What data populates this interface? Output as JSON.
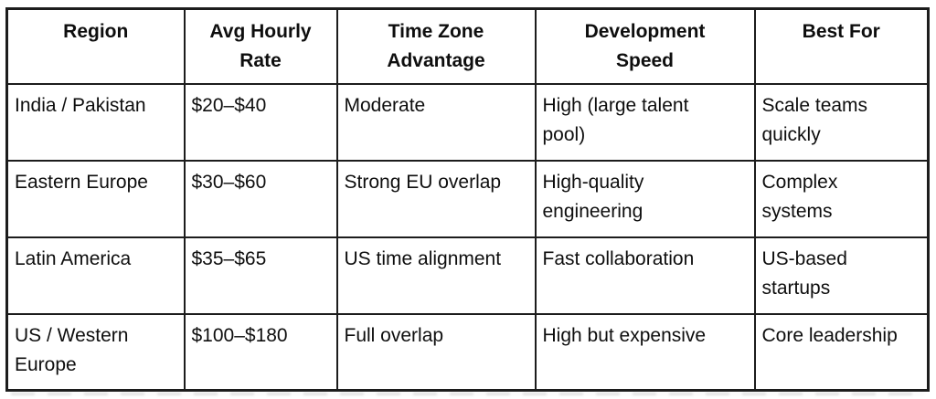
{
  "table": {
    "columns": [
      "Region",
      "Avg Hourly\nRate",
      "Time Zone\nAdvantage",
      "Development\nSpeed",
      "Best For"
    ],
    "rows": [
      [
        "India / Pakistan",
        "$20–$40",
        "Moderate",
        "High (large talent\npool)",
        "Scale teams\nquickly"
      ],
      [
        "Eastern Europe",
        "$30–$60",
        "Strong EU overlap",
        "High-quality\nengineering",
        "Complex\nsystems"
      ],
      [
        "Latin America",
        "$35–$65",
        "US time alignment",
        "Fast collaboration",
        "US-based\nstartups"
      ],
      [
        "US / Western\nEurope",
        "$100–$180",
        "Full overlap",
        "High but expensive",
        "Core leadership"
      ]
    ],
    "colors": {
      "border": "#1c1c1c",
      "text": "#0e0e0e",
      "background": "#ffffff"
    }
  }
}
